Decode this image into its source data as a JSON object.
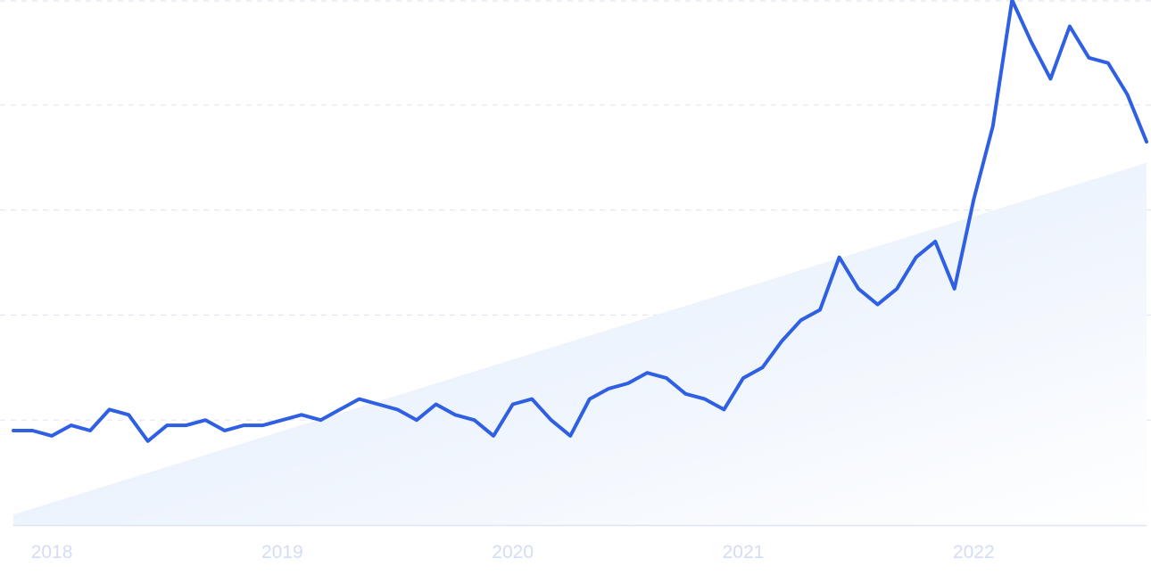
{
  "chart_data": {
    "type": "line",
    "title": "",
    "xlabel": "",
    "ylabel": "",
    "ylim": [
      0,
      100
    ],
    "grid": true,
    "legend": "none",
    "x_tick_labels": [
      "2018",
      "2019",
      "2020",
      "2021",
      "2022"
    ],
    "x": [
      "2017-11",
      "2017-12",
      "2018-01",
      "2018-02",
      "2018-03",
      "2018-04",
      "2018-05",
      "2018-06",
      "2018-07",
      "2018-08",
      "2018-09",
      "2018-10",
      "2018-11",
      "2018-12",
      "2019-01",
      "2019-02",
      "2019-03",
      "2019-04",
      "2019-05",
      "2019-06",
      "2019-07",
      "2019-08",
      "2019-09",
      "2019-10",
      "2019-11",
      "2019-12",
      "2020-01",
      "2020-02",
      "2020-03",
      "2020-04",
      "2020-05",
      "2020-06",
      "2020-07",
      "2020-08",
      "2020-09",
      "2020-10",
      "2020-11",
      "2020-12",
      "2021-01",
      "2021-02",
      "2021-03",
      "2021-04",
      "2021-05",
      "2021-06",
      "2021-07",
      "2021-08",
      "2021-09",
      "2021-10",
      "2021-11",
      "2021-12",
      "2022-01",
      "2022-02",
      "2022-03",
      "2022-04",
      "2022-05",
      "2022-06",
      "2022-07",
      "2022-08",
      "2022-09",
      "2022-10"
    ],
    "series": [
      {
        "values": [
          18,
          18,
          17,
          19,
          18,
          22,
          21,
          16,
          19,
          19,
          20,
          18,
          19,
          19,
          20,
          21,
          20,
          22,
          24,
          23,
          22,
          20,
          23,
          21,
          20,
          17,
          23,
          24,
          20,
          17,
          24,
          26,
          27,
          29,
          28,
          25,
          24,
          22,
          28,
          30,
          35,
          39,
          41,
          51,
          45,
          42,
          45,
          51,
          54,
          45,
          62,
          76,
          100,
          92,
          85,
          95,
          89,
          88,
          82,
          73
        ],
        "color": "#2f5fe3"
      }
    ],
    "trend": {
      "start_value": 2,
      "end_value": 69,
      "color": "#dbe8fa"
    },
    "colors": {
      "grid": "#e3e8f0",
      "axis": "#dde6f7",
      "tick_label": "#d3ddf5"
    }
  }
}
